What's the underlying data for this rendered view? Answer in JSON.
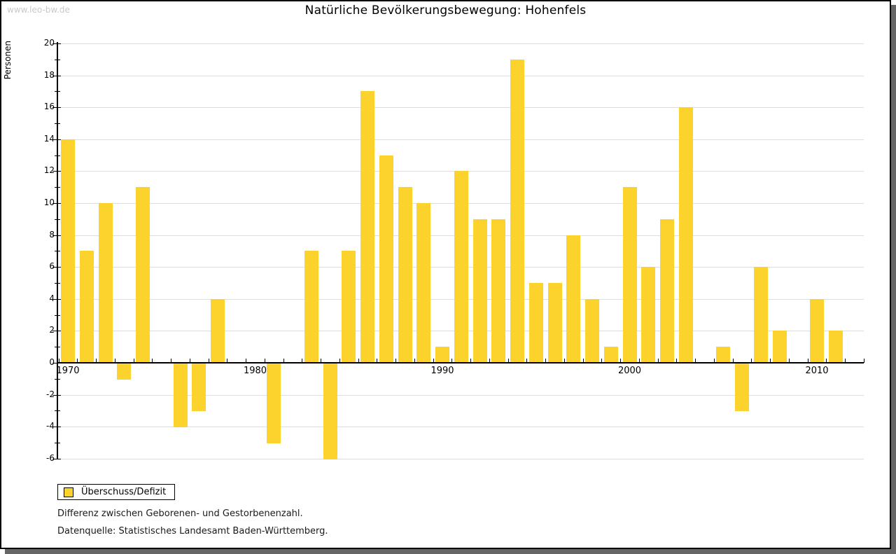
{
  "watermark": "www.leo-bw.de",
  "title": "Natürliche Bevölkerungsbewegung: Hohenfels",
  "legend": {
    "label": "Überschuss/Defizit"
  },
  "footnotes": [
    "Differenz zwischen Geborenen- und Gestorbenenzahl.",
    "Datenquelle: Statistisches Landesamt Baden-Württemberg."
  ],
  "chart_data": {
    "type": "bar",
    "title": "Natürliche Bevölkerungsbewegung: Hohenfels",
    "xlabel": "",
    "ylabel": "Personen",
    "ylim": [
      -6,
      20
    ],
    "ytick_step": 2,
    "grid": true,
    "legend_position": "bottom-left",
    "series_name": "Überschuss/Defizit",
    "bar_color": "#fcd32d",
    "gridline_color": "#dddddd",
    "x_axis_labels": [
      1970,
      1980,
      1990,
      2000,
      2010
    ],
    "categories": [
      1970,
      1971,
      1972,
      1973,
      1974,
      1975,
      1976,
      1977,
      1978,
      1979,
      1980,
      1981,
      1982,
      1983,
      1984,
      1985,
      1986,
      1987,
      1988,
      1989,
      1990,
      1991,
      1992,
      1993,
      1994,
      1995,
      1996,
      1997,
      1998,
      1999,
      2000,
      2001,
      2002,
      2003,
      2004,
      2005,
      2006,
      2007,
      2008,
      2009,
      2010,
      2011
    ],
    "values": [
      14,
      7,
      10,
      -1,
      11,
      0,
      -4,
      -3,
      4,
      0,
      0,
      -5,
      0,
      7,
      -6,
      7,
      17,
      13,
      11,
      10,
      1,
      12,
      9,
      9,
      19,
      5,
      5,
      8,
      4,
      1,
      11,
      6,
      9,
      16,
      0,
      1,
      -3,
      6,
      2,
      0,
      4,
      2
    ]
  }
}
